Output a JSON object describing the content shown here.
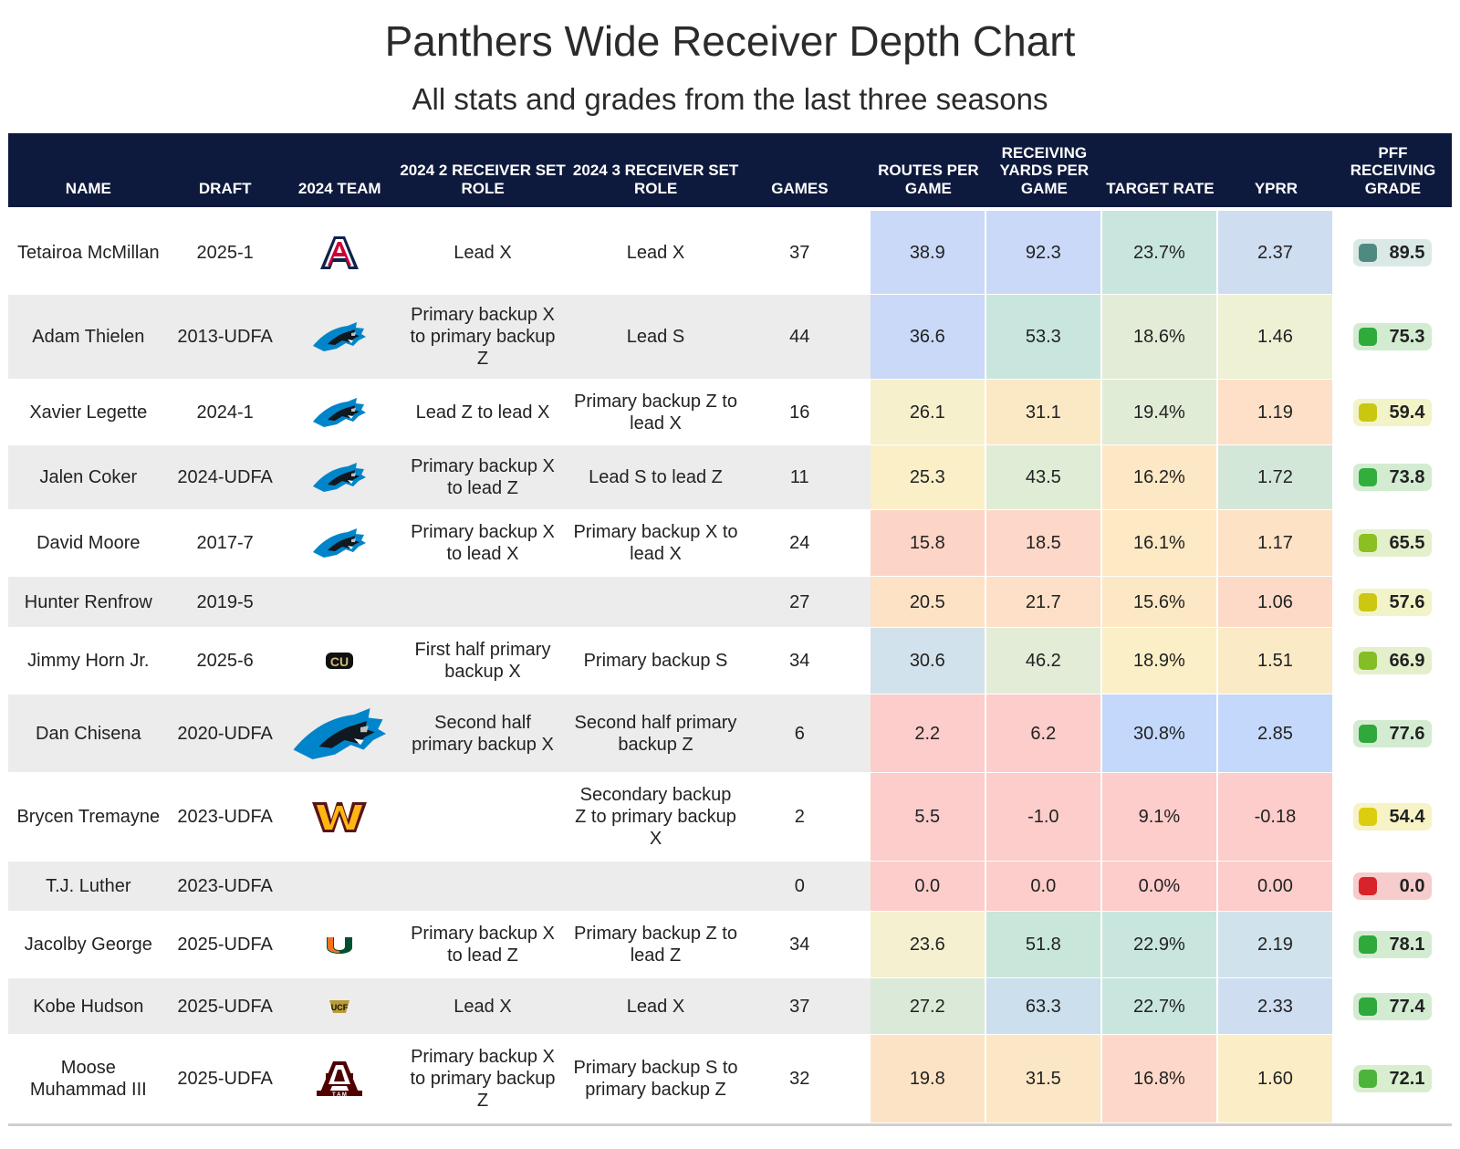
{
  "title": "Panthers Wide Receiver Depth Chart",
  "subtitle": "All stats and grades from the last three seasons",
  "headers": {
    "name": "NAME",
    "draft": "DRAFT",
    "team": "2024 TEAM",
    "role2": "2024 2 RECEIVER SET ROLE",
    "role3": "2024 3 RECEIVER SET ROLE",
    "games": "GAMES",
    "routes": "ROUTES PER GAME",
    "yards": "RECEIVING YARDS PER GAME",
    "target": "TARGET RATE",
    "yprr": "YPRR",
    "grade": "PFF RECEIVING GRADE"
  },
  "chart_data": {
    "type": "table",
    "title": "Panthers Wide Receiver Depth Chart",
    "subtitle": "All stats and grades from the last three seasons",
    "columns": [
      "NAME",
      "DRAFT",
      "2024 TEAM",
      "2024 2 RECEIVER SET ROLE",
      "2024 3 RECEIVER SET ROLE",
      "GAMES",
      "ROUTES PER GAME",
      "RECEIVING YARDS PER GAME",
      "TARGET RATE",
      "YPRR",
      "PFF RECEIVING GRADE"
    ],
    "rows": [
      {
        "name": "Tetairoa McMillan",
        "draft": "2025-1",
        "team": "arizona-logo",
        "role2": "Lead X",
        "role3": "Lead X",
        "games": "37",
        "routes": "38.9",
        "yards": "92.3",
        "target": "23.7%",
        "yprr": "2.37",
        "grade": "89.5",
        "colors": {
          "routes": "#c9d9f7",
          "yards": "#c9d9f7",
          "target": "#c9e6de",
          "yprr": "#cfddf0",
          "grade": "#4f8a82",
          "pill": "#dbe9e6"
        }
      },
      {
        "name": "Adam Thielen",
        "draft": "2013-UDFA",
        "team": "panthers-logo",
        "role2": "Primary backup X to primary backup Z",
        "role3": "Lead S",
        "games": "44",
        "routes": "36.6",
        "yards": "53.3",
        "target": "18.6%",
        "yprr": "1.46",
        "grade": "75.3",
        "colors": {
          "routes": "#c9d9f7",
          "yards": "#c9e6de",
          "target": "#e3ecd7",
          "yprr": "#eef1d4",
          "grade": "#2fab3c",
          "pill": "#d3ecd1"
        }
      },
      {
        "name": "Xavier Legette",
        "draft": "2024-1",
        "team": "panthers-logo",
        "role2": "Lead Z to lead X",
        "role3": "Primary backup Z to lead X",
        "games": "16",
        "routes": "26.1",
        "yards": "31.1",
        "target": "19.4%",
        "yprr": "1.19",
        "grade": "59.4",
        "colors": {
          "routes": "#f7f0cd",
          "yards": "#fbe8c5",
          "target": "#e0ecd6",
          "yprr": "#fde0c7",
          "grade": "#c9c712",
          "pill": "#f3f3c8"
        }
      },
      {
        "name": "Jalen Coker",
        "draft": "2024-UDFA",
        "team": "panthers-logo",
        "role2": "Primary backup X to lead Z",
        "role3": "Lead S to lead Z",
        "games": "11",
        "routes": "25.3",
        "yards": "43.5",
        "target": "16.2%",
        "yprr": "1.72",
        "grade": "73.8",
        "colors": {
          "routes": "#fbefc7",
          "yards": "#dfecd6",
          "target": "#fde8c5",
          "yprr": "#d3e7d8",
          "grade": "#31ae3c",
          "pill": "#d3ecd1"
        }
      },
      {
        "name": "David Moore",
        "draft": "2017-7",
        "team": "panthers-logo",
        "role2": "Primary backup X to lead X",
        "role3": "Primary backup X to lead X",
        "games": "24",
        "routes": "15.8",
        "yards": "18.5",
        "target": "16.1%",
        "yprr": "1.17",
        "grade": "65.5",
        "colors": {
          "routes": "#fdd5c7",
          "yards": "#fdd8c8",
          "target": "#fde9c4",
          "yprr": "#fde2c6",
          "grade": "#8cbf22",
          "pill": "#e4f0cc"
        }
      },
      {
        "name": "Hunter Renfrow",
        "draft": "2019-5",
        "team": "",
        "role2": "",
        "role3": "",
        "games": "27",
        "routes": "20.5",
        "yards": "21.7",
        "target": "15.6%",
        "yprr": "1.06",
        "grade": "57.6",
        "colors": {
          "routes": "#fde2c6",
          "yards": "#fde0c7",
          "target": "#fde8c5",
          "yprr": "#fdd9c8",
          "grade": "#cbc712",
          "pill": "#f3f3c8"
        }
      },
      {
        "name": "Jimmy Horn Jr.",
        "draft": "2025-6",
        "team": "colorado-logo",
        "role2": "First half primary backup X",
        "role3": "Primary backup S",
        "games": "34",
        "routes": "30.6",
        "yards": "46.2",
        "target": "18.9%",
        "yprr": "1.51",
        "grade": "66.9",
        "colors": {
          "routes": "#d2e2ec",
          "yards": "#e3ecd7",
          "target": "#fbefc7",
          "yprr": "#fbeac6",
          "grade": "#85bd24",
          "pill": "#e4f0cc"
        }
      },
      {
        "name": "Dan Chisena",
        "draft": "2020-UDFA",
        "team": "panthers-logo-large",
        "role2": "Second half primary backup X",
        "role3": "Second half primary backup Z",
        "games": "6",
        "routes": "2.2",
        "yards": "6.2",
        "target": "30.8%",
        "yprr": "2.85",
        "grade": "77.6",
        "colors": {
          "routes": "#fccdca",
          "yards": "#fccdca",
          "target": "#c4d8fb",
          "yprr": "#c4d8fb",
          "grade": "#2fa83c",
          "pill": "#d3ecd1"
        }
      },
      {
        "name": "Brycen Tremayne",
        "draft": "2023-UDFA",
        "team": "commanders-logo",
        "role2": "",
        "role3": "Secondary backup Z to primary backup X",
        "games": "2",
        "routes": "5.5",
        "yards": "-1.0",
        "target": "9.1%",
        "yprr": "-0.18",
        "grade": "54.4",
        "colors": {
          "routes": "#fccdca",
          "yards": "#fccdca",
          "target": "#fccdca",
          "yprr": "#fccdca",
          "grade": "#dccd0e",
          "pill": "#f7f3c6"
        }
      },
      {
        "name": "T.J. Luther",
        "draft": "2023-UDFA",
        "team": "",
        "role2": "",
        "role3": "",
        "games": "0",
        "routes": "0.0",
        "yards": "0.0",
        "target": "0.0%",
        "yprr": "0.00",
        "grade": "0.0",
        "colors": {
          "routes": "#fccdca",
          "yards": "#fccdca",
          "target": "#fccdca",
          "yprr": "#fccdca",
          "grade": "#d8232a",
          "pill": "#f6cccc"
        }
      },
      {
        "name": "Jacolby George",
        "draft": "2025-UDFA",
        "team": "miami-logo",
        "role2": "Primary backup X to lead Z",
        "role3": "Primary backup Z to lead Z",
        "games": "34",
        "routes": "23.6",
        "yards": "51.8",
        "target": "22.9%",
        "yprr": "2.19",
        "grade": "78.1",
        "colors": {
          "routes": "#f5f0d0",
          "yards": "#c9e6da",
          "target": "#c9e6de",
          "yprr": "#d0e2ec",
          "grade": "#2fa83c",
          "pill": "#d3ecd1"
        }
      },
      {
        "name": "Kobe Hudson",
        "draft": "2025-UDFA",
        "team": "ucf-logo",
        "role2": "Lead X",
        "role3": "Lead X",
        "games": "37",
        "routes": "27.2",
        "yards": "63.3",
        "target": "22.7%",
        "yprr": "2.33",
        "grade": "77.4",
        "colors": {
          "routes": "#dbead8",
          "yards": "#cbdfec",
          "target": "#c9e6de",
          "yprr": "#cfddf0",
          "grade": "#2fa83c",
          "pill": "#d3ecd1"
        }
      },
      {
        "name": "Moose Muhammad III",
        "draft": "2025-UDFA",
        "team": "texas-am-logo",
        "role2": "Primary backup X to primary backup Z",
        "role3": "Primary backup S to primary backup Z",
        "games": "32",
        "routes": "19.8",
        "yards": "31.5",
        "target": "16.8%",
        "yprr": "1.60",
        "grade": "72.1",
        "colors": {
          "routes": "#fde3c6",
          "yards": "#fbe6c5",
          "target": "#fdd8c8",
          "yprr": "#fbeec7",
          "grade": "#4cb43a",
          "pill": "#d8eecf"
        }
      }
    ]
  }
}
